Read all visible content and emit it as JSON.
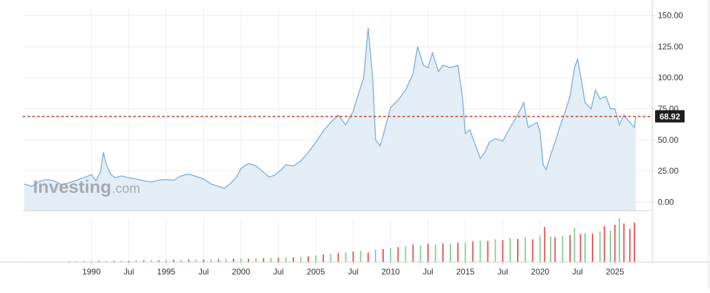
{
  "watermark": {
    "brand": "Investing",
    "suffix": ".com"
  },
  "chart_data": [
    {
      "type": "area",
      "x_tick_labels": [
        "1990",
        "Jul",
        "1995",
        "Jul",
        "2000",
        "Jul",
        "2005",
        "Jul",
        "2010",
        "Jul",
        "2015",
        "Jul",
        "2020",
        "Jul",
        "2025"
      ],
      "x_tick_years": [
        1990,
        1992.5,
        1995,
        1997.5,
        2000,
        2002.5,
        2005,
        2007.5,
        2010,
        2012.5,
        2015,
        2017.5,
        2020,
        2022.5,
        2025
      ],
      "xlim": [
        1985.4,
        2027.5
      ],
      "ylim": [
        -7,
        157
      ],
      "y_ticks": [
        0,
        25,
        50,
        75,
        100,
        125,
        150
      ],
      "y_tick_labels": [
        "0.00",
        "25.00",
        "50.00",
        "75.00",
        "100.00",
        "125.00",
        "150.00"
      ],
      "reference_line": {
        "value": 68.92,
        "label": "68.92",
        "style": "dashed",
        "color": "#c0392b"
      },
      "series": [
        {
          "points": [
            [
              1985.5,
              14.5
            ],
            [
              1986.0,
              12.5
            ],
            [
              1986.5,
              16.5
            ],
            [
              1987.0,
              18.0
            ],
            [
              1987.5,
              17.0
            ],
            [
              1988.0,
              14.0
            ],
            [
              1988.5,
              15.5
            ],
            [
              1989.0,
              17.5
            ],
            [
              1989.5,
              19.5
            ],
            [
              1990.0,
              22.0
            ],
            [
              1990.3,
              17.0
            ],
            [
              1990.6,
              24.0
            ],
            [
              1990.8,
              40.0
            ],
            [
              1991.0,
              30.0
            ],
            [
              1991.3,
              22.0
            ],
            [
              1991.6,
              19.5
            ],
            [
              1992.0,
              21.0
            ],
            [
              1992.5,
              19.5
            ],
            [
              1993.0,
              18.5
            ],
            [
              1993.5,
              17.0
            ],
            [
              1994.0,
              16.0
            ],
            [
              1994.5,
              17.5
            ],
            [
              1995.0,
              18.0
            ],
            [
              1995.5,
              17.5
            ],
            [
              1996.0,
              21.0
            ],
            [
              1996.5,
              22.5
            ],
            [
              1997.0,
              20.5
            ],
            [
              1997.5,
              18.5
            ],
            [
              1998.0,
              14.5
            ],
            [
              1998.5,
              12.5
            ],
            [
              1998.9,
              11.0
            ],
            [
              1999.3,
              15.0
            ],
            [
              1999.7,
              20.0
            ],
            [
              2000.0,
              27.0
            ],
            [
              2000.5,
              31.0
            ],
            [
              2001.0,
              29.0
            ],
            [
              2001.5,
              24.0
            ],
            [
              2001.9,
              20.0
            ],
            [
              2002.3,
              22.0
            ],
            [
              2002.7,
              26.0
            ],
            [
              2003.0,
              30.0
            ],
            [
              2003.5,
              29.0
            ],
            [
              2004.0,
              33.0
            ],
            [
              2004.5,
              40.0
            ],
            [
              2005.0,
              48.0
            ],
            [
              2005.5,
              57.0
            ],
            [
              2006.0,
              64.0
            ],
            [
              2006.5,
              70.0
            ],
            [
              2007.0,
              62.0
            ],
            [
              2007.5,
              73.0
            ],
            [
              2007.8,
              85.0
            ],
            [
              2008.2,
              100.0
            ],
            [
              2008.5,
              140.0
            ],
            [
              2008.8,
              100.0
            ],
            [
              2009.0,
              50.0
            ],
            [
              2009.3,
              45.0
            ],
            [
              2009.6,
              58.0
            ],
            [
              2010.0,
              76.0
            ],
            [
              2010.5,
              82.0
            ],
            [
              2011.0,
              90.0
            ],
            [
              2011.5,
              103.0
            ],
            [
              2011.8,
              125.0
            ],
            [
              2012.2,
              110.0
            ],
            [
              2012.5,
              108.0
            ],
            [
              2012.8,
              120.0
            ],
            [
              2013.2,
              105.0
            ],
            [
              2013.5,
              110.0
            ],
            [
              2014.0,
              108.0
            ],
            [
              2014.5,
              110.0
            ],
            [
              2014.8,
              85.0
            ],
            [
              2015.0,
              55.0
            ],
            [
              2015.3,
              58.0
            ],
            [
              2015.6,
              48.0
            ],
            [
              2016.0,
              35.0
            ],
            [
              2016.3,
              40.0
            ],
            [
              2016.6,
              48.0
            ],
            [
              2017.0,
              51.0
            ],
            [
              2017.5,
              49.0
            ],
            [
              2018.0,
              60.0
            ],
            [
              2018.5,
              70.0
            ],
            [
              2018.9,
              80.0
            ],
            [
              2019.2,
              60.0
            ],
            [
              2019.5,
              62.0
            ],
            [
              2019.8,
              64.0
            ],
            [
              2020.0,
              56.0
            ],
            [
              2020.2,
              30.0
            ],
            [
              2020.4,
              26.0
            ],
            [
              2020.7,
              38.0
            ],
            [
              2021.0,
              48.0
            ],
            [
              2021.3,
              60.0
            ],
            [
              2021.6,
              70.0
            ],
            [
              2022.0,
              85.0
            ],
            [
              2022.3,
              108.0
            ],
            [
              2022.5,
              115.0
            ],
            [
              2022.8,
              95.0
            ],
            [
              2023.0,
              80.0
            ],
            [
              2023.4,
              75.0
            ],
            [
              2023.7,
              90.0
            ],
            [
              2024.0,
              83.0
            ],
            [
              2024.4,
              85.0
            ],
            [
              2024.7,
              75.0
            ],
            [
              2025.0,
              75.0
            ],
            [
              2025.3,
              62.0
            ],
            [
              2025.6,
              70.0
            ],
            [
              2026.0,
              64.0
            ],
            [
              2026.3,
              60.0
            ],
            [
              2026.4,
              68.92
            ]
          ]
        }
      ]
    },
    {
      "type": "bar",
      "description_of_values": "volume",
      "xlim": [
        1985.4,
        2027.5
      ],
      "ylim": [
        0,
        100
      ],
      "bars": [
        [
          1986.0,
          1,
          "up"
        ],
        [
          1986.5,
          1,
          "down"
        ],
        [
          1987.0,
          1,
          "up"
        ],
        [
          1987.5,
          1,
          "down"
        ],
        [
          1988.0,
          1,
          "up"
        ],
        [
          1988.5,
          2,
          "down"
        ],
        [
          1989.0,
          2,
          "up"
        ],
        [
          1989.5,
          2,
          "down"
        ],
        [
          1990.0,
          2,
          "up"
        ],
        [
          1990.5,
          3,
          "down"
        ],
        [
          1991.0,
          3,
          "up"
        ],
        [
          1991.5,
          3,
          "down"
        ],
        [
          1992.0,
          3,
          "up"
        ],
        [
          1992.5,
          3,
          "down"
        ],
        [
          1993.0,
          4,
          "up"
        ],
        [
          1993.5,
          4,
          "down"
        ],
        [
          1994.0,
          4,
          "up"
        ],
        [
          1994.5,
          4,
          "down"
        ],
        [
          1995.0,
          5,
          "up"
        ],
        [
          1995.5,
          5,
          "down"
        ],
        [
          1996.0,
          5,
          "up"
        ],
        [
          1996.5,
          6,
          "down"
        ],
        [
          1997.0,
          6,
          "up"
        ],
        [
          1997.5,
          6,
          "down"
        ],
        [
          1998.0,
          7,
          "up"
        ],
        [
          1998.5,
          7,
          "down"
        ],
        [
          1999.0,
          7,
          "up"
        ],
        [
          1999.5,
          8,
          "down"
        ],
        [
          2000.0,
          8,
          "up"
        ],
        [
          2000.5,
          8,
          "down"
        ],
        [
          2001.0,
          9,
          "up"
        ],
        [
          2001.5,
          9,
          "down"
        ],
        [
          2002.0,
          10,
          "up"
        ],
        [
          2002.5,
          10,
          "down"
        ],
        [
          2003.0,
          11,
          "up"
        ],
        [
          2003.5,
          11,
          "down"
        ],
        [
          2004.0,
          12,
          "up"
        ],
        [
          2004.5,
          13,
          "down"
        ],
        [
          2005.0,
          15,
          "up"
        ],
        [
          2005.5,
          17,
          "down"
        ],
        [
          2006.0,
          19,
          "up"
        ],
        [
          2006.5,
          21,
          "down"
        ],
        [
          2007.0,
          22,
          "up"
        ],
        [
          2007.5,
          24,
          "down"
        ],
        [
          2008.0,
          26,
          "up"
        ],
        [
          2008.5,
          22,
          "down"
        ],
        [
          2009.0,
          28,
          "up"
        ],
        [
          2009.5,
          30,
          "down"
        ],
        [
          2010.0,
          32,
          "up"
        ],
        [
          2010.5,
          34,
          "down"
        ],
        [
          2011.0,
          36,
          "up"
        ],
        [
          2011.5,
          40,
          "down"
        ],
        [
          2012.0,
          38,
          "up"
        ],
        [
          2012.5,
          42,
          "down"
        ],
        [
          2013.0,
          40,
          "up"
        ],
        [
          2013.5,
          43,
          "down"
        ],
        [
          2014.0,
          41,
          "up"
        ],
        [
          2014.5,
          44,
          "down"
        ],
        [
          2015.0,
          45,
          "up"
        ],
        [
          2015.5,
          47,
          "down"
        ],
        [
          2016.0,
          49,
          "up"
        ],
        [
          2016.5,
          48,
          "down"
        ],
        [
          2017.0,
          52,
          "up"
        ],
        [
          2017.5,
          50,
          "down"
        ],
        [
          2018.0,
          55,
          "up"
        ],
        [
          2018.5,
          53,
          "down"
        ],
        [
          2019.0,
          56,
          "up"
        ],
        [
          2019.5,
          52,
          "down"
        ],
        [
          2020.0,
          60,
          "up"
        ],
        [
          2020.3,
          80,
          "down"
        ],
        [
          2020.7,
          58,
          "up"
        ],
        [
          2021.0,
          57,
          "down"
        ],
        [
          2021.5,
          60,
          "up"
        ],
        [
          2022.0,
          62,
          "down"
        ],
        [
          2022.3,
          78,
          "up"
        ],
        [
          2022.7,
          64,
          "down"
        ],
        [
          2023.0,
          66,
          "up"
        ],
        [
          2023.5,
          65,
          "down"
        ],
        [
          2024.0,
          70,
          "up"
        ],
        [
          2024.3,
          82,
          "down"
        ],
        [
          2024.7,
          72,
          "up"
        ],
        [
          2025.0,
          85,
          "down"
        ],
        [
          2025.3,
          100,
          "up"
        ],
        [
          2025.6,
          88,
          "down"
        ],
        [
          2026.0,
          76,
          "down"
        ],
        [
          2026.3,
          90,
          "down"
        ]
      ],
      "up_color": "#8fd0a0",
      "down_color": "#e35a5a"
    }
  ],
  "colors": {
    "line": "#7fb0d6",
    "area": "#e4eef7",
    "grid": "#efefef",
    "axis_border": "#cfcfcf",
    "text": "#333333",
    "tag_bg": "#1f1f1f",
    "tag_text": "#ffffff",
    "watermark": "#9aa1a8"
  }
}
